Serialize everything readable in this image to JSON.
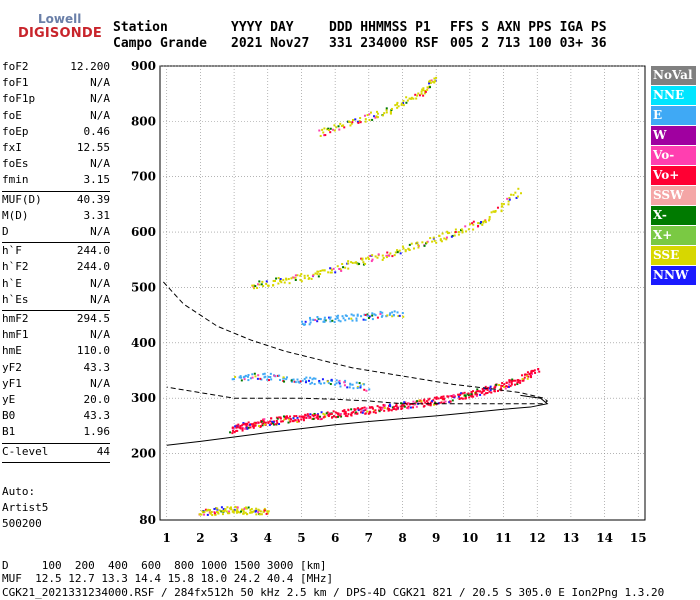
{
  "logo": {
    "top": "Lowell",
    "main": "DIGISONDE"
  },
  "header": {
    "line1": [
      "Station",
      "YYYY DAY",
      "DDD HHMMSS P1",
      "FFS S AXN PPS IGA PS"
    ],
    "line2": [
      "Campo Grande",
      "2021 Nov27",
      "331 234000 RSF",
      "005 2 713 100 03+ 36"
    ]
  },
  "params": [
    {
      "label": "foF2",
      "value": "12.200"
    },
    {
      "label": "foF1",
      "value": "N/A"
    },
    {
      "label": "foF1p",
      "value": "N/A"
    },
    {
      "label": "foE",
      "value": "N/A"
    },
    {
      "label": "foEp",
      "value": "0.46"
    },
    {
      "label": "fxI",
      "value": "12.55"
    },
    {
      "label": "foEs",
      "value": "N/A"
    },
    {
      "label": "fmin",
      "value": "3.15"
    },
    {
      "sep": true
    },
    {
      "label": "MUF(D)",
      "value": "40.39"
    },
    {
      "label": "M(D)",
      "value": "3.31"
    },
    {
      "label": "D",
      "value": "N/A"
    },
    {
      "sep": true
    },
    {
      "label": "h`F",
      "value": "244.0"
    },
    {
      "label": "h`F2",
      "value": "244.0"
    },
    {
      "label": "h`E",
      "value": "N/A"
    },
    {
      "label": "h`Es",
      "value": "N/A"
    },
    {
      "sep": true
    },
    {
      "label": "hmF2",
      "value": "294.5"
    },
    {
      "label": "hmF1",
      "value": "N/A"
    },
    {
      "label": "hmE",
      "value": "110.0"
    },
    {
      "label": "yF2",
      "value": "43.3"
    },
    {
      "label": "yF1",
      "value": "N/A"
    },
    {
      "label": "yE",
      "value": "20.0"
    },
    {
      "label": "B0",
      "value": "43.3"
    },
    {
      "label": "B1",
      "value": "1.96"
    },
    {
      "sep": true
    },
    {
      "label": "C-level",
      "value": "44"
    },
    {
      "sep": true
    }
  ],
  "auto": {
    "l1": "Auto:",
    "l2": "Artist5",
    "l3": "500200"
  },
  "legend": [
    {
      "label": "NoVal",
      "color": "#808080"
    },
    {
      "label": "NNE",
      "color": "#00e5ff"
    },
    {
      "label": "E",
      "color": "#3fa9f5"
    },
    {
      "label": "W",
      "color": "#a000a0"
    },
    {
      "label": "Vo-",
      "color": "#ff3fb0"
    },
    {
      "label": "Vo+",
      "color": "#ff0033"
    },
    {
      "label": "SSW",
      "color": "#f4a6a6"
    },
    {
      "label": "X-",
      "color": "#007a00"
    },
    {
      "label": "X+",
      "color": "#7ac943"
    },
    {
      "label": "SSE",
      "color": "#d7d700"
    },
    {
      "label": "NNW",
      "color": "#1a1aff"
    }
  ],
  "footer": {
    "line1": "D     100  200  400  600  800 1000 1500 3000 [km]",
    "line2": "MUF  12.5 12.7 13.3 14.4 15.8 18.0 24.2 40.4 [MHz]",
    "line3": "CGK21_2021331234000.RSF / 284fx512h 50 kHz 2.5 km / DPS-4D CGK21 821 / 20.5 S 305.0 E Ion2Png 1.3.20"
  },
  "chart_data": {
    "type": "scatter",
    "xlim": [
      0.8,
      15.2
    ],
    "ylim": [
      80,
      900
    ],
    "xticks": [
      1,
      2,
      3,
      4,
      5,
      6,
      7,
      8,
      9,
      10,
      11,
      12,
      13,
      14,
      15
    ],
    "yticks": [
      80,
      200,
      300,
      400,
      500,
      600,
      700,
      800,
      900
    ],
    "grid": true,
    "traces": [
      {
        "name": "F2 trace O (Vo+)",
        "color": "#ff0033",
        "x": [
          2.9,
          3.2,
          3.6,
          4.0,
          4.5,
          5.0,
          5.5,
          6.0,
          6.5,
          7.0,
          7.5,
          8.0,
          8.5,
          9.0,
          9.5,
          10.0,
          10.5,
          11.0,
          11.5,
          12.0
        ],
        "y": [
          245,
          250,
          255,
          259,
          263,
          266,
          270,
          273,
          276,
          280,
          284,
          288,
          292,
          297,
          302,
          308,
          316,
          325,
          336,
          352
        ]
      },
      {
        "name": "F2 trace second hop",
        "color": "#d7d700",
        "x": [
          3.5,
          4.5,
          5.5,
          6.5,
          7.5,
          8.5,
          9.5,
          10.5,
          11.5
        ],
        "y": [
          505,
          515,
          525,
          545,
          560,
          580,
          600,
          625,
          680
        ]
      },
      {
        "name": "third hop",
        "color": "#d7d700",
        "x": [
          5.5,
          6.5,
          7.5,
          8.5,
          9.0
        ],
        "y": [
          780,
          800,
          820,
          850,
          880
        ]
      },
      {
        "name": "spread E-west",
        "color": "#3fa9f5",
        "x": [
          3.0,
          4.0,
          5.0,
          6.0,
          7.0
        ],
        "y": [
          340,
          340,
          335,
          330,
          320
        ]
      },
      {
        "name": "sporadic low",
        "color": "#d7d700",
        "x": [
          2.0,
          2.5,
          3.0,
          3.5,
          4.0
        ],
        "y": [
          95,
          98,
          100,
          98,
          95
        ]
      },
      {
        "name": "upper east",
        "color": "#3fa9f5",
        "x": [
          5.0,
          6.0,
          7.0,
          8.0
        ],
        "y": [
          440,
          445,
          450,
          455
        ]
      }
    ],
    "profile_curve": {
      "name": "electron density profile",
      "x": [
        0.9,
        1.5,
        2.5,
        3.5,
        4.5,
        5.5,
        6.5,
        7.5,
        8.5,
        9.5,
        10.5,
        11.5,
        12.2,
        12.3,
        12.2,
        11.0,
        10.0,
        9.0,
        8.0,
        7.0,
        6.0,
        5.0,
        4.0,
        3.0,
        2.0,
        1.0
      ],
      "y": [
        510,
        470,
        430,
        405,
        385,
        370,
        355,
        345,
        335,
        325,
        318,
        310,
        300,
        295,
        290,
        290,
        290,
        290,
        290,
        295,
        298,
        300,
        300,
        300,
        310,
        320
      ]
    },
    "model_curve": {
      "name": "model trace",
      "x": [
        1.0,
        2.0,
        3.0,
        4.0,
        5.0,
        6.0,
        7.0,
        8.0,
        9.0,
        10.0,
        11.0,
        11.8,
        12.3,
        12.1,
        11.5
      ],
      "y": [
        215,
        222,
        230,
        238,
        245,
        252,
        258,
        263,
        268,
        274,
        280,
        284,
        290,
        300,
        305
      ]
    }
  }
}
